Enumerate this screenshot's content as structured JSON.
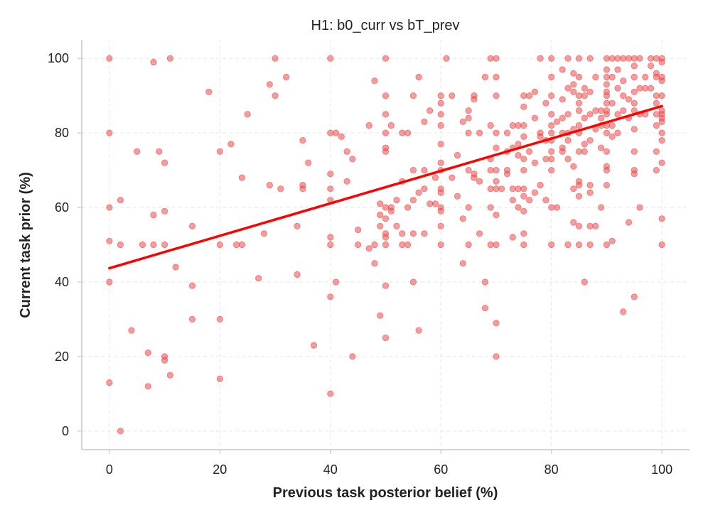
{
  "chart_data": {
    "type": "scatter",
    "title": "H1: b0_curr vs bT_prev",
    "xlabel": "Previous task posterior belief (%)",
    "ylabel": "Current task prior (%)",
    "xlim": [
      -5,
      105
    ],
    "ylim": [
      -5,
      105
    ],
    "xticks": [
      0,
      20,
      40,
      60,
      80,
      100
    ],
    "yticks": [
      0,
      20,
      40,
      60,
      80,
      100
    ],
    "grid": true,
    "point_color": "#f04a4a",
    "point_opacity": 0.55,
    "line_color": "#ff0000",
    "fit_line": {
      "x": [
        0,
        100
      ],
      "y": [
        43.7,
        87.2
      ]
    },
    "points": [
      [
        0,
        100
      ],
      [
        0,
        80
      ],
      [
        0,
        60
      ],
      [
        0,
        51
      ],
      [
        0,
        40
      ],
      [
        0,
        13
      ],
      [
        2,
        62
      ],
      [
        2,
        50
      ],
      [
        2,
        0
      ],
      [
        4,
        27
      ],
      [
        5,
        75
      ],
      [
        6,
        50
      ],
      [
        7,
        21
      ],
      [
        7,
        12
      ],
      [
        8,
        99
      ],
      [
        8,
        58
      ],
      [
        8,
        50
      ],
      [
        9,
        75
      ],
      [
        10,
        72
      ],
      [
        10,
        59
      ],
      [
        10,
        50
      ],
      [
        10,
        20
      ],
      [
        10,
        19
      ],
      [
        11,
        100
      ],
      [
        11,
        15
      ],
      [
        12,
        44
      ],
      [
        15,
        55
      ],
      [
        15,
        39
      ],
      [
        15,
        30
      ],
      [
        18,
        91
      ],
      [
        20,
        75
      ],
      [
        20,
        50
      ],
      [
        20,
        30
      ],
      [
        20,
        14
      ],
      [
        22,
        77
      ],
      [
        23,
        50
      ],
      [
        24,
        68
      ],
      [
        24,
        50
      ],
      [
        25,
        85
      ],
      [
        27,
        41
      ],
      [
        28,
        53
      ],
      [
        29,
        93
      ],
      [
        29,
        66
      ],
      [
        30,
        100
      ],
      [
        30,
        90
      ],
      [
        31,
        65
      ],
      [
        32,
        95
      ],
      [
        34,
        55
      ],
      [
        34,
        42
      ],
      [
        35,
        78
      ],
      [
        35,
        66
      ],
      [
        35,
        65
      ],
      [
        36,
        72
      ],
      [
        37,
        23
      ],
      [
        40,
        100
      ],
      [
        40,
        80
      ],
      [
        40,
        69
      ],
      [
        40,
        65
      ],
      [
        40,
        62
      ],
      [
        40,
        52
      ],
      [
        40,
        50
      ],
      [
        40,
        36
      ],
      [
        40,
        10
      ],
      [
        41,
        80
      ],
      [
        41,
        40
      ],
      [
        42,
        79
      ],
      [
        43,
        75
      ],
      [
        43,
        67
      ],
      [
        44,
        73
      ],
      [
        44,
        20
      ],
      [
        45,
        54
      ],
      [
        45,
        50
      ],
      [
        47,
        82
      ],
      [
        47,
        49
      ],
      [
        48,
        94
      ],
      [
        48,
        50
      ],
      [
        48,
        45
      ],
      [
        49,
        61
      ],
      [
        49,
        58
      ],
      [
        49,
        55
      ],
      [
        49,
        31
      ],
      [
        50,
        100
      ],
      [
        50,
        90
      ],
      [
        50,
        85
      ],
      [
        50,
        80
      ],
      [
        50,
        76
      ],
      [
        50,
        75
      ],
      [
        50,
        60
      ],
      [
        50,
        57
      ],
      [
        50,
        53
      ],
      [
        50,
        52
      ],
      [
        50,
        50
      ],
      [
        50,
        39
      ],
      [
        50,
        25
      ],
      [
        51,
        82
      ],
      [
        51,
        60
      ],
      [
        51,
        59
      ],
      [
        52,
        62
      ],
      [
        52,
        55
      ],
      [
        53,
        80
      ],
      [
        53,
        67
      ],
      [
        53,
        53
      ],
      [
        53,
        50
      ],
      [
        54,
        80
      ],
      [
        54,
        60
      ],
      [
        54,
        50
      ],
      [
        55,
        90
      ],
      [
        55,
        70
      ],
      [
        55,
        62
      ],
      [
        55,
        53
      ],
      [
        55,
        40
      ],
      [
        56,
        95
      ],
      [
        56,
        64
      ],
      [
        56,
        27
      ],
      [
        57,
        83
      ],
      [
        57,
        70
      ],
      [
        57,
        65
      ],
      [
        57,
        53
      ],
      [
        58,
        86
      ],
      [
        58,
        61
      ],
      [
        59,
        61
      ],
      [
        59,
        68
      ],
      [
        60,
        90
      ],
      [
        60,
        88
      ],
      [
        60,
        85
      ],
      [
        60,
        82
      ],
      [
        60,
        77
      ],
      [
        60,
        72
      ],
      [
        60,
        70
      ],
      [
        60,
        65
      ],
      [
        60,
        64
      ],
      [
        60,
        60
      ],
      [
        60,
        59
      ],
      [
        60,
        55
      ],
      [
        60,
        50
      ],
      [
        61,
        100
      ],
      [
        62,
        90
      ],
      [
        62,
        68
      ],
      [
        63,
        74
      ],
      [
        63,
        63
      ],
      [
        64,
        83
      ],
      [
        64,
        57
      ],
      [
        64,
        45
      ],
      [
        65,
        86
      ],
      [
        65,
        84
      ],
      [
        65,
        80
      ],
      [
        65,
        70
      ],
      [
        65,
        60
      ],
      [
        65,
        50
      ],
      [
        66,
        90
      ],
      [
        66,
        89
      ],
      [
        66,
        69
      ],
      [
        66,
        68
      ],
      [
        67,
        80
      ],
      [
        67,
        67
      ],
      [
        67,
        53
      ],
      [
        68,
        95
      ],
      [
        68,
        40
      ],
      [
        68,
        33
      ],
      [
        69,
        100
      ],
      [
        69,
        82
      ],
      [
        69,
        73
      ],
      [
        69,
        70
      ],
      [
        69,
        65
      ],
      [
        69,
        60
      ],
      [
        69,
        50
      ],
      [
        70,
        100
      ],
      [
        70,
        95
      ],
      [
        70,
        90
      ],
      [
        70,
        80
      ],
      [
        70,
        76
      ],
      [
        70,
        70
      ],
      [
        70,
        67
      ],
      [
        70,
        65
      ],
      [
        70,
        58
      ],
      [
        70,
        50
      ],
      [
        70,
        29
      ],
      [
        70,
        20
      ],
      [
        71,
        65
      ],
      [
        72,
        80
      ],
      [
        72,
        75
      ],
      [
        72,
        70
      ],
      [
        72,
        69
      ],
      [
        73,
        82
      ],
      [
        73,
        76
      ],
      [
        73,
        65
      ],
      [
        73,
        62
      ],
      [
        73,
        52
      ],
      [
        74,
        82
      ],
      [
        74,
        77
      ],
      [
        74,
        74
      ],
      [
        74,
        65
      ],
      [
        74,
        60
      ],
      [
        75,
        90
      ],
      [
        75,
        87
      ],
      [
        75,
        82
      ],
      [
        75,
        79
      ],
      [
        75,
        73
      ],
      [
        75,
        70
      ],
      [
        75,
        65
      ],
      [
        75,
        63
      ],
      [
        75,
        59
      ],
      [
        75,
        53
      ],
      [
        75,
        50
      ],
      [
        76,
        90
      ],
      [
        76,
        75
      ],
      [
        76,
        62
      ],
      [
        77,
        91
      ],
      [
        77,
        84
      ],
      [
        77,
        72
      ],
      [
        77,
        64
      ],
      [
        78,
        100
      ],
      [
        78,
        80
      ],
      [
        78,
        79
      ],
      [
        78,
        66
      ],
      [
        79,
        88
      ],
      [
        79,
        78
      ],
      [
        79,
        73
      ],
      [
        79,
        62
      ],
      [
        80,
        100
      ],
      [
        80,
        95
      ],
      [
        80,
        90
      ],
      [
        80,
        85
      ],
      [
        80,
        82
      ],
      [
        80,
        80
      ],
      [
        80,
        78
      ],
      [
        80,
        75
      ],
      [
        80,
        73
      ],
      [
        80,
        70
      ],
      [
        80,
        60
      ],
      [
        80,
        50
      ],
      [
        81,
        83
      ],
      [
        81,
        60
      ],
      [
        82,
        97
      ],
      [
        82,
        89
      ],
      [
        82,
        84
      ],
      [
        82,
        80
      ],
      [
        82,
        76
      ],
      [
        82,
        75
      ],
      [
        83,
        100
      ],
      [
        83,
        92
      ],
      [
        83,
        85
      ],
      [
        83,
        80
      ],
      [
        83,
        78
      ],
      [
        83,
        73
      ],
      [
        83,
        50
      ],
      [
        84,
        96
      ],
      [
        84,
        93
      ],
      [
        84,
        91
      ],
      [
        84,
        81
      ],
      [
        84,
        71
      ],
      [
        84,
        65
      ],
      [
        84,
        56
      ],
      [
        85,
        100
      ],
      [
        85,
        95
      ],
      [
        85,
        90
      ],
      [
        85,
        88
      ],
      [
        85,
        86
      ],
      [
        85,
        82
      ],
      [
        85,
        80
      ],
      [
        85,
        75
      ],
      [
        85,
        67
      ],
      [
        85,
        66
      ],
      [
        85,
        63
      ],
      [
        85,
        55
      ],
      [
        85,
        50
      ],
      [
        86,
        92
      ],
      [
        86,
        90
      ],
      [
        86,
        84
      ],
      [
        86,
        77
      ],
      [
        86,
        75
      ],
      [
        86,
        40
      ],
      [
        87,
        100
      ],
      [
        87,
        91
      ],
      [
        87,
        85
      ],
      [
        87,
        78
      ],
      [
        87,
        66
      ],
      [
        87,
        64
      ],
      [
        87,
        55
      ],
      [
        87,
        50
      ],
      [
        88,
        95
      ],
      [
        88,
        86
      ],
      [
        88,
        81
      ],
      [
        88,
        55
      ],
      [
        89,
        86
      ],
      [
        89,
        84
      ],
      [
        89,
        82
      ],
      [
        89,
        76
      ],
      [
        89,
        60
      ],
      [
        90,
        100
      ],
      [
        90,
        97
      ],
      [
        90,
        95
      ],
      [
        90,
        93
      ],
      [
        90,
        91
      ],
      [
        90,
        90
      ],
      [
        90,
        88
      ],
      [
        90,
        86
      ],
      [
        90,
        85
      ],
      [
        90,
        82
      ],
      [
        90,
        80
      ],
      [
        90,
        75
      ],
      [
        90,
        71
      ],
      [
        90,
        70
      ],
      [
        90,
        66
      ],
      [
        90,
        50
      ],
      [
        91,
        100
      ],
      [
        91,
        95
      ],
      [
        91,
        88
      ],
      [
        91,
        82
      ],
      [
        91,
        79
      ],
      [
        91,
        51
      ],
      [
        92,
        100
      ],
      [
        92,
        97
      ],
      [
        92,
        92
      ],
      [
        92,
        85
      ],
      [
        92,
        80
      ],
      [
        93,
        100
      ],
      [
        93,
        94
      ],
      [
        93,
        90
      ],
      [
        93,
        86
      ],
      [
        93,
        32
      ],
      [
        94,
        100
      ],
      [
        94,
        89
      ],
      [
        94,
        84
      ],
      [
        94,
        56
      ],
      [
        95,
        100
      ],
      [
        95,
        98
      ],
      [
        95,
        95
      ],
      [
        95,
        91
      ],
      [
        95,
        88
      ],
      [
        95,
        86
      ],
      [
        95,
        81
      ],
      [
        95,
        75
      ],
      [
        95,
        70
      ],
      [
        95,
        69
      ],
      [
        95,
        36
      ],
      [
        96,
        100
      ],
      [
        96,
        92
      ],
      [
        96,
        85
      ],
      [
        96,
        60
      ],
      [
        97,
        95
      ],
      [
        97,
        92
      ],
      [
        97,
        85
      ],
      [
        98,
        100
      ],
      [
        98,
        98
      ],
      [
        98,
        92
      ],
      [
        99,
        100
      ],
      [
        99,
        96
      ],
      [
        99,
        95
      ],
      [
        99,
        90
      ],
      [
        99,
        88
      ],
      [
        99,
        85
      ],
      [
        99,
        82
      ],
      [
        99,
        75
      ],
      [
        99,
        70
      ],
      [
        100,
        100
      ],
      [
        100,
        99
      ],
      [
        100,
        95
      ],
      [
        100,
        94
      ],
      [
        100,
        90
      ],
      [
        100,
        86
      ],
      [
        100,
        85
      ],
      [
        100,
        84
      ],
      [
        100,
        83
      ],
      [
        100,
        80
      ],
      [
        100,
        78
      ],
      [
        100,
        72
      ],
      [
        100,
        57
      ],
      [
        100,
        50
      ]
    ]
  }
}
